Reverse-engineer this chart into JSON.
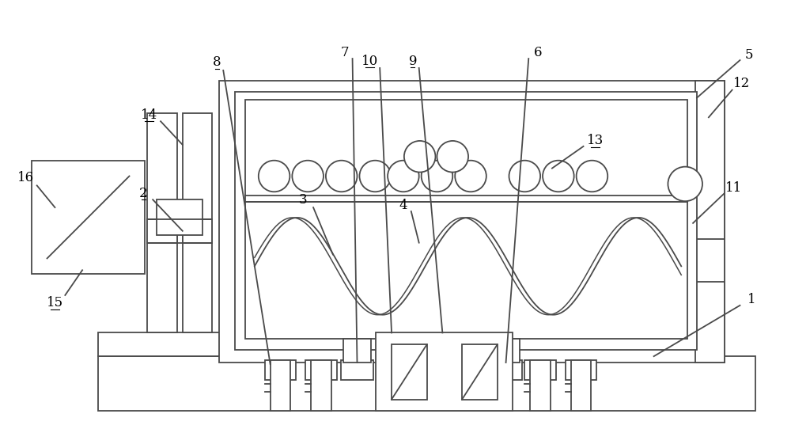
{
  "bg_color": "#ffffff",
  "line_color": "#4a4a4a",
  "lw": 1.3,
  "fs": 12
}
